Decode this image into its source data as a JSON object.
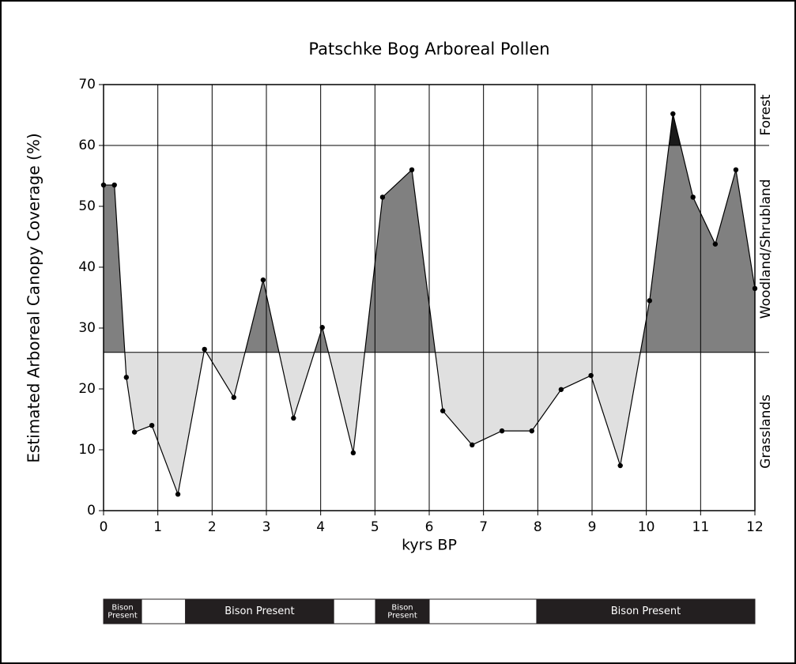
{
  "chart_data": {
    "type": "area",
    "title": "Patschke Bog Arboreal Pollen",
    "xlabel": "kyrs BP",
    "ylabel": "Estimated Arboreal Canopy Coverage (%)",
    "x": [
      0,
      0.2,
      0.42,
      0.57,
      0.89,
      1.37,
      1.86,
      2.4,
      2.94,
      3.5,
      4.03,
      4.6,
      5.14,
      5.68,
      6.25,
      6.79,
      7.34,
      7.89,
      8.43,
      8.98,
      9.52,
      10.06,
      10.49,
      10.86,
      11.27,
      11.65,
      12
    ],
    "values": [
      53.5,
      53.5,
      21.9,
      12.9,
      14.0,
      2.7,
      26.5,
      18.6,
      37.9,
      15.2,
      30.1,
      9.5,
      51.5,
      56.0,
      16.4,
      10.8,
      13.1,
      13.1,
      19.9,
      22.2,
      7.4,
      34.5,
      65.2,
      51.5,
      43.8,
      56.0,
      36.5
    ],
    "color": "#000000",
    "xlim": [
      0,
      12
    ],
    "xticks": [
      0,
      1,
      2,
      3,
      4,
      5,
      6,
      7,
      8,
      9,
      10,
      11,
      12
    ],
    "ylim": [
      0,
      70
    ],
    "yticks": [
      0,
      10,
      20,
      30,
      40,
      50,
      60,
      70
    ],
    "grid": "x",
    "zones": [
      {
        "label": "Grasslands",
        "from": 0,
        "to": 26,
        "fill": "#e0e0e0"
      },
      {
        "label": "Woodland/Shrubland",
        "from": 26,
        "to": 60,
        "fill": "#808080"
      },
      {
        "label": "Forest",
        "from": 60,
        "to": 70,
        "fill": "#1a1a1a"
      }
    ],
    "bison": [
      {
        "start": 0,
        "end": 0.7,
        "present": true,
        "label": "Bison Present"
      },
      {
        "start": 0.7,
        "end": 1.51,
        "present": false
      },
      {
        "start": 1.51,
        "end": 4.24,
        "present": true,
        "label": "Bison Present"
      },
      {
        "start": 4.24,
        "end": 5.01,
        "present": false
      },
      {
        "start": 5.01,
        "end": 6.0,
        "present": true,
        "label": "Bison Present"
      },
      {
        "start": 6.0,
        "end": 7.98,
        "present": false
      },
      {
        "start": 7.98,
        "end": 12,
        "present": true,
        "label": "Bison Present"
      }
    ]
  }
}
